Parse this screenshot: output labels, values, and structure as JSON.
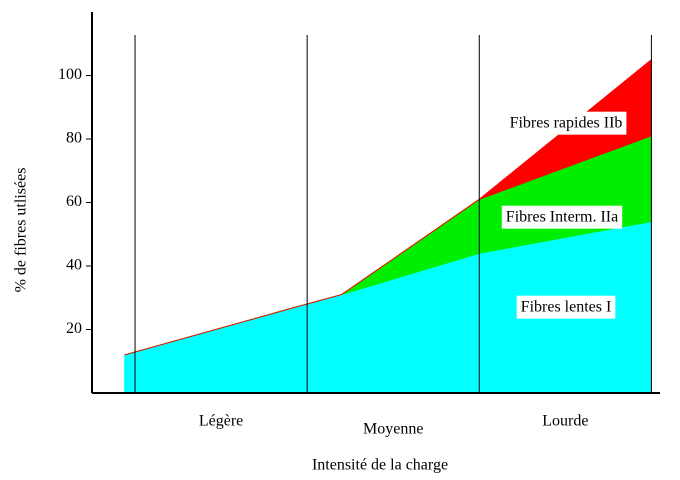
{
  "chart_data": {
    "type": "stacked-area",
    "x": [
      -0.06,
      0.93,
      1.2,
      2.0,
      2.5,
      3.0
    ],
    "xlim": [
      -0.25,
      3.05
    ],
    "xgrid": [
      0,
      1,
      2,
      3
    ],
    "categories": [
      "Légère",
      "Moyenne",
      "Lourde"
    ],
    "xlabel": "Intensité de la charge",
    "ylabel": "% de fibres utlisées",
    "ylim": [
      0,
      120
    ],
    "yticks": [
      20,
      40,
      60,
      80,
      100
    ],
    "series": [
      {
        "name": "Fibres lentes I",
        "color": "#00ffff",
        "values": [
          12,
          27,
          31,
          44,
          49,
          54
        ]
      },
      {
        "name": "Fibres Interm. IIa",
        "color": "#00ee00",
        "values": [
          0,
          0,
          0,
          17,
          22,
          27
        ]
      },
      {
        "name": "Fibres rapides IIb",
        "color": "#ff0000",
        "values": [
          0,
          0,
          0,
          0,
          12,
          24
        ]
      }
    ]
  }
}
